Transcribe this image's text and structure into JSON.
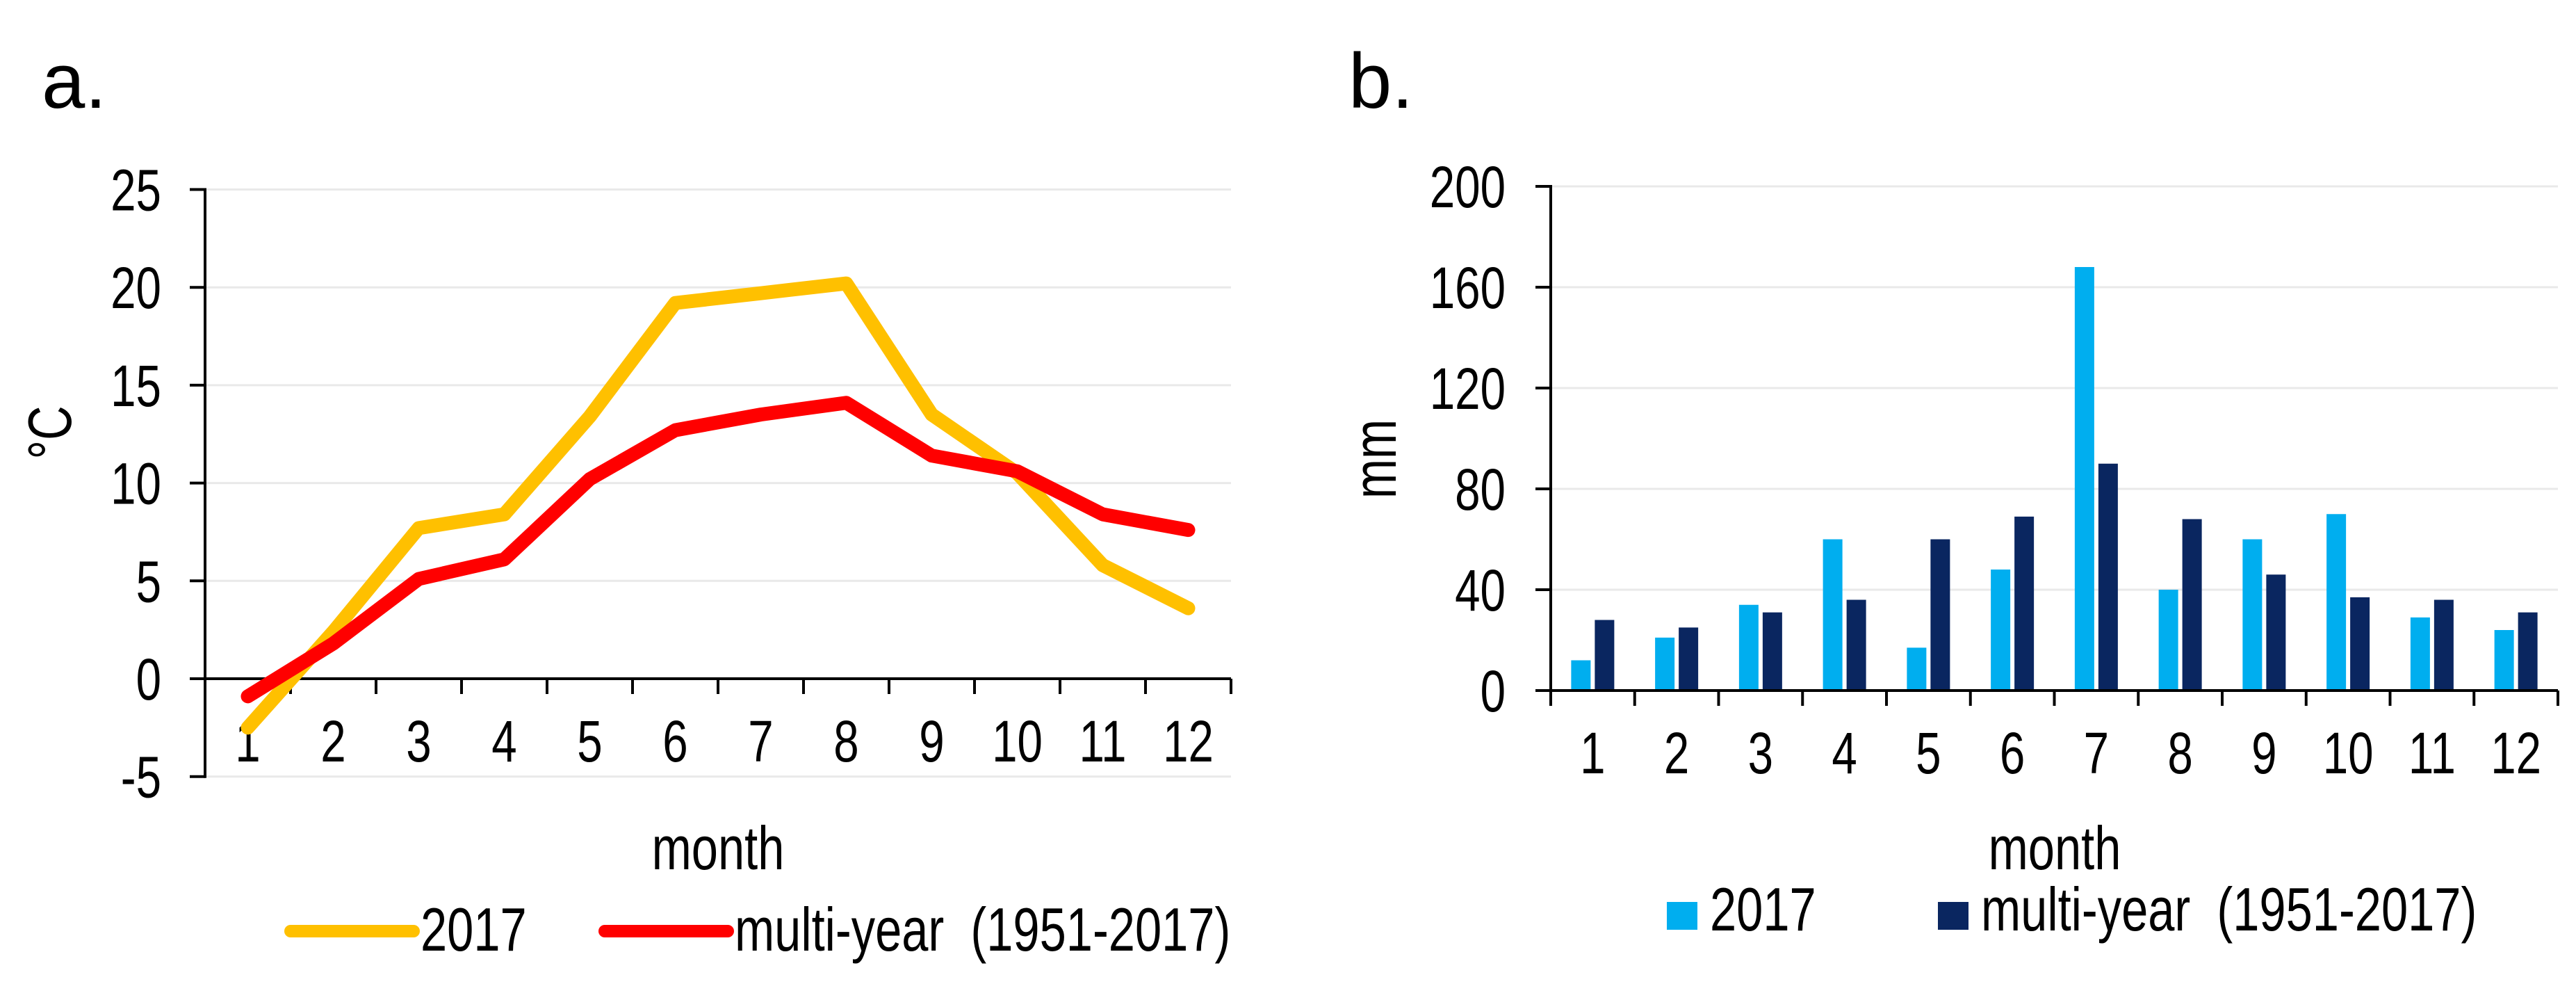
{
  "figure": {
    "background": "#ffffff",
    "text_color": "#000000",
    "gridline_color": "#e9e9e9",
    "axis_color": "#000000"
  },
  "chart_data": [
    {
      "type": "line",
      "panel": "a.",
      "title": "",
      "xlabel": "month",
      "ylabel": "°C",
      "categories": [
        1,
        2,
        3,
        4,
        5,
        6,
        7,
        8,
        9,
        10,
        11,
        12
      ],
      "y_ticks": [
        -5,
        0,
        5,
        10,
        15,
        20,
        25
      ],
      "ylim": [
        -5,
        25
      ],
      "grid": true,
      "legend_position": "bottom",
      "series": [
        {
          "name": "2017",
          "color": "#FFC000",
          "values": [
            -2.5,
            2.4,
            7.7,
            8.4,
            13.4,
            19.2,
            19.7,
            20.2,
            13.5,
            10.5,
            5.8,
            3.6
          ]
        },
        {
          "name": "multi-year  (1951-2017)",
          "color": "#FF0000",
          "values": [
            -0.9,
            1.8,
            5.1,
            6.1,
            10.2,
            12.7,
            13.5,
            14.1,
            11.4,
            10.6,
            8.4,
            7.6
          ]
        }
      ]
    },
    {
      "type": "bar",
      "panel": "b.",
      "title": "",
      "xlabel": "month",
      "ylabel": "mm",
      "categories": [
        1,
        2,
        3,
        4,
        5,
        6,
        7,
        8,
        9,
        10,
        11,
        12
      ],
      "y_ticks": [
        0,
        40,
        80,
        120,
        160,
        200
      ],
      "ylim": [
        0,
        200
      ],
      "grid": true,
      "legend_position": "bottom",
      "series": [
        {
          "name": "2017",
          "color": "#00AEEF",
          "values": [
            12,
            21,
            34,
            60,
            17,
            48,
            168,
            40,
            60,
            70,
            29,
            24
          ]
        },
        {
          "name": "multi-year  (1951-2017)",
          "color": "#0A2660",
          "values": [
            28,
            25,
            31,
            36,
            60,
            69,
            90,
            68,
            46,
            37,
            36,
            31
          ]
        }
      ]
    }
  ]
}
